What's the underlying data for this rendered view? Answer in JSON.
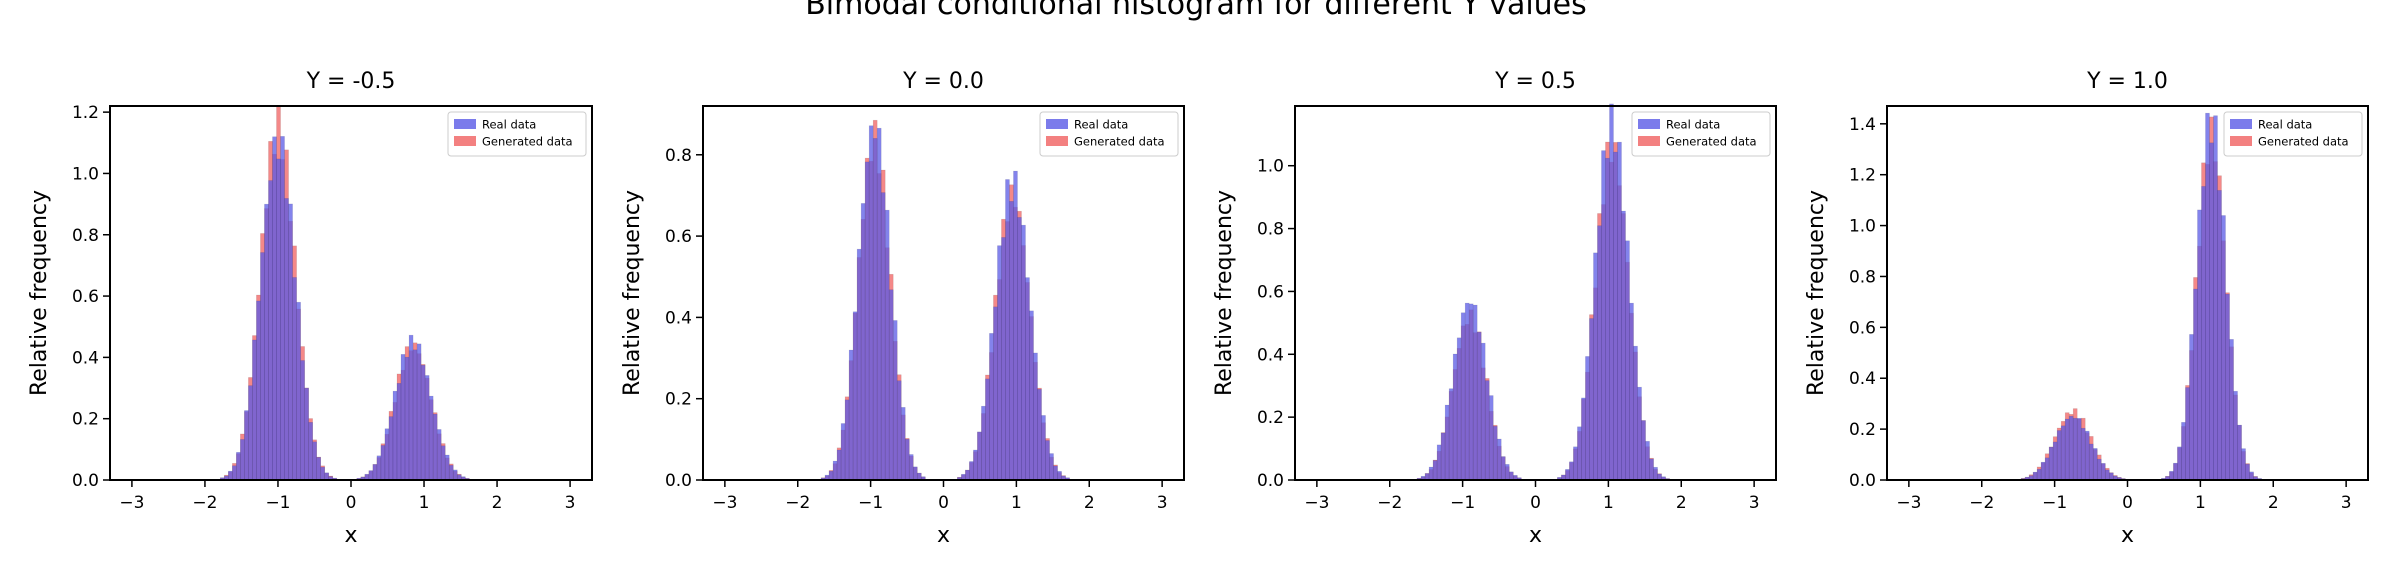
{
  "figure": {
    "suptitle": "Bimodal conditional histogram for different Y values"
  },
  "colors": {
    "real": "#5a5ae6",
    "generated": "#f06060",
    "edge": "#000000"
  },
  "chart_data": [
    {
      "type": "histogram",
      "title": "Y = -0.5",
      "xlabel": "x",
      "ylabel": "Relative frequency",
      "xlim": [
        -3.3,
        3.3
      ],
      "ylim": [
        0,
        1.22
      ],
      "xticks": [
        -3,
        -2,
        -1,
        0,
        1,
        2,
        3
      ],
      "xtick_labels": [
        "−3",
        "−2",
        "−1",
        "0",
        "1",
        "2",
        "3"
      ],
      "yticks": [
        0.0,
        0.2,
        0.4,
        0.6,
        0.8,
        1.0,
        1.2
      ],
      "ytick_labels": [
        "0.0",
        "0.2",
        "0.4",
        "0.6",
        "0.8",
        "1.0",
        "1.2"
      ],
      "legend": {
        "position": "top-right",
        "entries": [
          "Real data",
          "Generated data"
        ]
      },
      "modes": [
        {
          "center": -1.0,
          "peak_real": 1.1,
          "peak_generated": 1.15,
          "width": 0.24
        },
        {
          "center": 0.85,
          "peak_real": 0.45,
          "peak_generated": 0.44,
          "width": 0.25
        }
      ]
    },
    {
      "type": "histogram",
      "title": "Y = 0.0",
      "xlabel": "x",
      "ylabel": "Relative frequency",
      "xlim": [
        -3.3,
        3.3
      ],
      "ylim": [
        0,
        0.92
      ],
      "xticks": [
        -3,
        -2,
        -1,
        0,
        1,
        2,
        3
      ],
      "xtick_labels": [
        "−3",
        "−2",
        "−1",
        "0",
        "1",
        "2",
        "3"
      ],
      "yticks": [
        0.0,
        0.2,
        0.4,
        0.6,
        0.8
      ],
      "ytick_labels": [
        "0.0",
        "0.2",
        "0.4",
        "0.6",
        "0.8"
      ],
      "legend": {
        "position": "top-right",
        "entries": [
          "Real data",
          "Generated data"
        ]
      },
      "modes": [
        {
          "center": -0.95,
          "peak_real": 0.87,
          "peak_generated": 0.84,
          "width": 0.22
        },
        {
          "center": 0.95,
          "peak_real": 0.73,
          "peak_generated": 0.7,
          "width": 0.24
        }
      ]
    },
    {
      "type": "histogram",
      "title": "Y = 0.5",
      "xlabel": "x",
      "ylabel": "Relative frequency",
      "xlim": [
        -3.3,
        3.3
      ],
      "ylim": [
        0,
        1.19
      ],
      "xticks": [
        -3,
        -2,
        -1,
        0,
        1,
        2,
        3
      ],
      "xtick_labels": [
        "−3",
        "−2",
        "−1",
        "0",
        "1",
        "2",
        "3"
      ],
      "yticks": [
        0.0,
        0.2,
        0.4,
        0.6,
        0.8,
        1.0
      ],
      "ytick_labels": [
        "0.0",
        "0.2",
        "0.4",
        "0.6",
        "0.8",
        "1.0"
      ],
      "legend": {
        "position": "top-right",
        "entries": [
          "Real data",
          "Generated data"
        ]
      },
      "modes": [
        {
          "center": -0.9,
          "peak_real": 0.57,
          "peak_generated": 0.52,
          "width": 0.23
        },
        {
          "center": 1.05,
          "peak_real": 1.13,
          "peak_generated": 1.06,
          "width": 0.23
        }
      ]
    },
    {
      "type": "histogram",
      "title": "Y = 1.0",
      "xlabel": "x",
      "ylabel": "Relative frequency",
      "xlim": [
        -3.3,
        3.3
      ],
      "ylim": [
        0,
        1.47
      ],
      "xticks": [
        -3,
        -2,
        -1,
        0,
        1,
        2,
        3
      ],
      "xtick_labels": [
        "−3",
        "−2",
        "−1",
        "0",
        "1",
        "2",
        "3"
      ],
      "yticks": [
        0.0,
        0.2,
        0.4,
        0.6,
        0.8,
        1.0,
        1.2,
        1.4
      ],
      "ytick_labels": [
        "0.0",
        "0.2",
        "0.4",
        "0.6",
        "0.8",
        "1.0",
        "1.2",
        "1.4"
      ],
      "legend": {
        "position": "top-right",
        "entries": [
          "Real data",
          "Generated data"
        ]
      },
      "modes": [
        {
          "center": -0.75,
          "peak_real": 0.25,
          "peak_generated": 0.27,
          "width": 0.25
        },
        {
          "center": 1.15,
          "peak_real": 1.41,
          "peak_generated": 1.36,
          "width": 0.2
        }
      ]
    }
  ]
}
